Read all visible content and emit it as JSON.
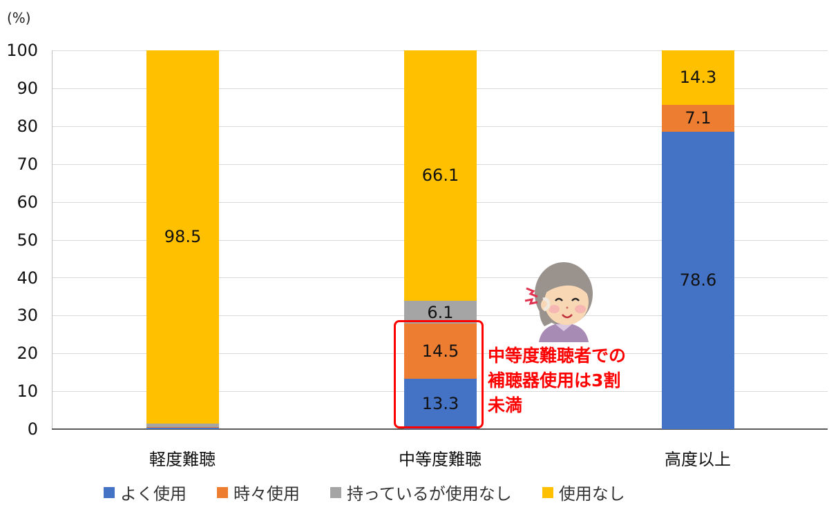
{
  "chart_data": {
    "type": "bar",
    "stacked": true,
    "title": "",
    "xlabel": "",
    "ylabel": "(%)",
    "ylim": [
      0,
      100
    ],
    "yticks": [
      0,
      10,
      20,
      30,
      40,
      50,
      60,
      70,
      80,
      90,
      100
    ],
    "grid": true,
    "legend_position": "bottom",
    "categories": [
      "軽度難聴",
      "中等度難聴",
      "高度以上"
    ],
    "series": [
      {
        "name": "よく使用",
        "color": "#4472C4",
        "values": [
          0.3,
          13.3,
          78.6
        ]
      },
      {
        "name": "時々使用",
        "color": "#ED7D31",
        "values": [
          0.3,
          14.5,
          7.1
        ]
      },
      {
        "name": "持っているが使用なし",
        "color": "#A5A5A5",
        "values": [
          0.9,
          6.1,
          0
        ]
      },
      {
        "name": "使用なし",
        "color": "#FFC000",
        "values": [
          98.5,
          66.1,
          14.3
        ]
      }
    ],
    "data_labels": [
      {
        "category": "軽度難聴",
        "series": "使用なし",
        "text": "98.5"
      },
      {
        "category": "中等度難聴",
        "series": "よく使用",
        "text": "13.3"
      },
      {
        "category": "中等度難聴",
        "series": "時々使用",
        "text": "14.5"
      },
      {
        "category": "中等度難聴",
        "series": "持っているが使用なし",
        "text": "6.1"
      },
      {
        "category": "中等度難聴",
        "series": "使用なし",
        "text": "66.1"
      },
      {
        "category": "高度以上",
        "series": "よく使用",
        "text": "78.6"
      },
      {
        "category": "高度以上",
        "series": "時々使用",
        "text": "7.1"
      },
      {
        "category": "高度以上",
        "series": "使用なし",
        "text": "14.3"
      }
    ],
    "annotations": [
      {
        "text": "中等度難聴者での\n補聴器使用は3割\n未満",
        "color": "#FF0000",
        "target": "中等度難聴 よく使用+時々使用"
      }
    ]
  },
  "axis": {
    "unit_label": "(%)",
    "y_labels": [
      "100",
      "90",
      "80",
      "70",
      "60",
      "50",
      "40",
      "30",
      "20",
      "10",
      "0"
    ]
  },
  "x_labels": [
    "軽度難聴",
    "中等度難聴",
    "高度以上"
  ],
  "bars": [
    {
      "segments": [
        {
          "value": 0.3,
          "color": "#4472C4",
          "label": ""
        },
        {
          "value": 0.3,
          "color": "#ED7D31",
          "label": ""
        },
        {
          "value": 0.9,
          "color": "#A5A5A5",
          "label": ""
        },
        {
          "value": 98.5,
          "color": "#FFC000",
          "label": "98.5"
        }
      ]
    },
    {
      "segments": [
        {
          "value": 13.3,
          "color": "#4472C4",
          "label": "13.3"
        },
        {
          "value": 14.5,
          "color": "#ED7D31",
          "label": "14.5"
        },
        {
          "value": 6.1,
          "color": "#A5A5A5",
          "label": "6.1"
        },
        {
          "value": 66.1,
          "color": "#FFC000",
          "label": "66.1"
        }
      ]
    },
    {
      "segments": [
        {
          "value": 78.6,
          "color": "#4472C4",
          "label": "78.6"
        },
        {
          "value": 7.1,
          "color": "#ED7D31",
          "label": "7.1"
        },
        {
          "value": 0,
          "color": "#A5A5A5",
          "label": ""
        },
        {
          "value": 14.3,
          "color": "#FFC000",
          "label": "14.3"
        }
      ]
    }
  ],
  "legend": [
    {
      "label": "よく使用",
      "color": "#4472C4"
    },
    {
      "label": "時々使用",
      "color": "#ED7D31"
    },
    {
      "label": "持っているが使用なし",
      "color": "#A5A5A5"
    },
    {
      "label": "使用なし",
      "color": "#FFC000"
    }
  ],
  "annotation": {
    "text": "中等度難聴者での\n補聴器使用は3割\n未満",
    "color": "#FF0000",
    "illustration": "elderly-woman-with-hearing-aid-icon"
  }
}
